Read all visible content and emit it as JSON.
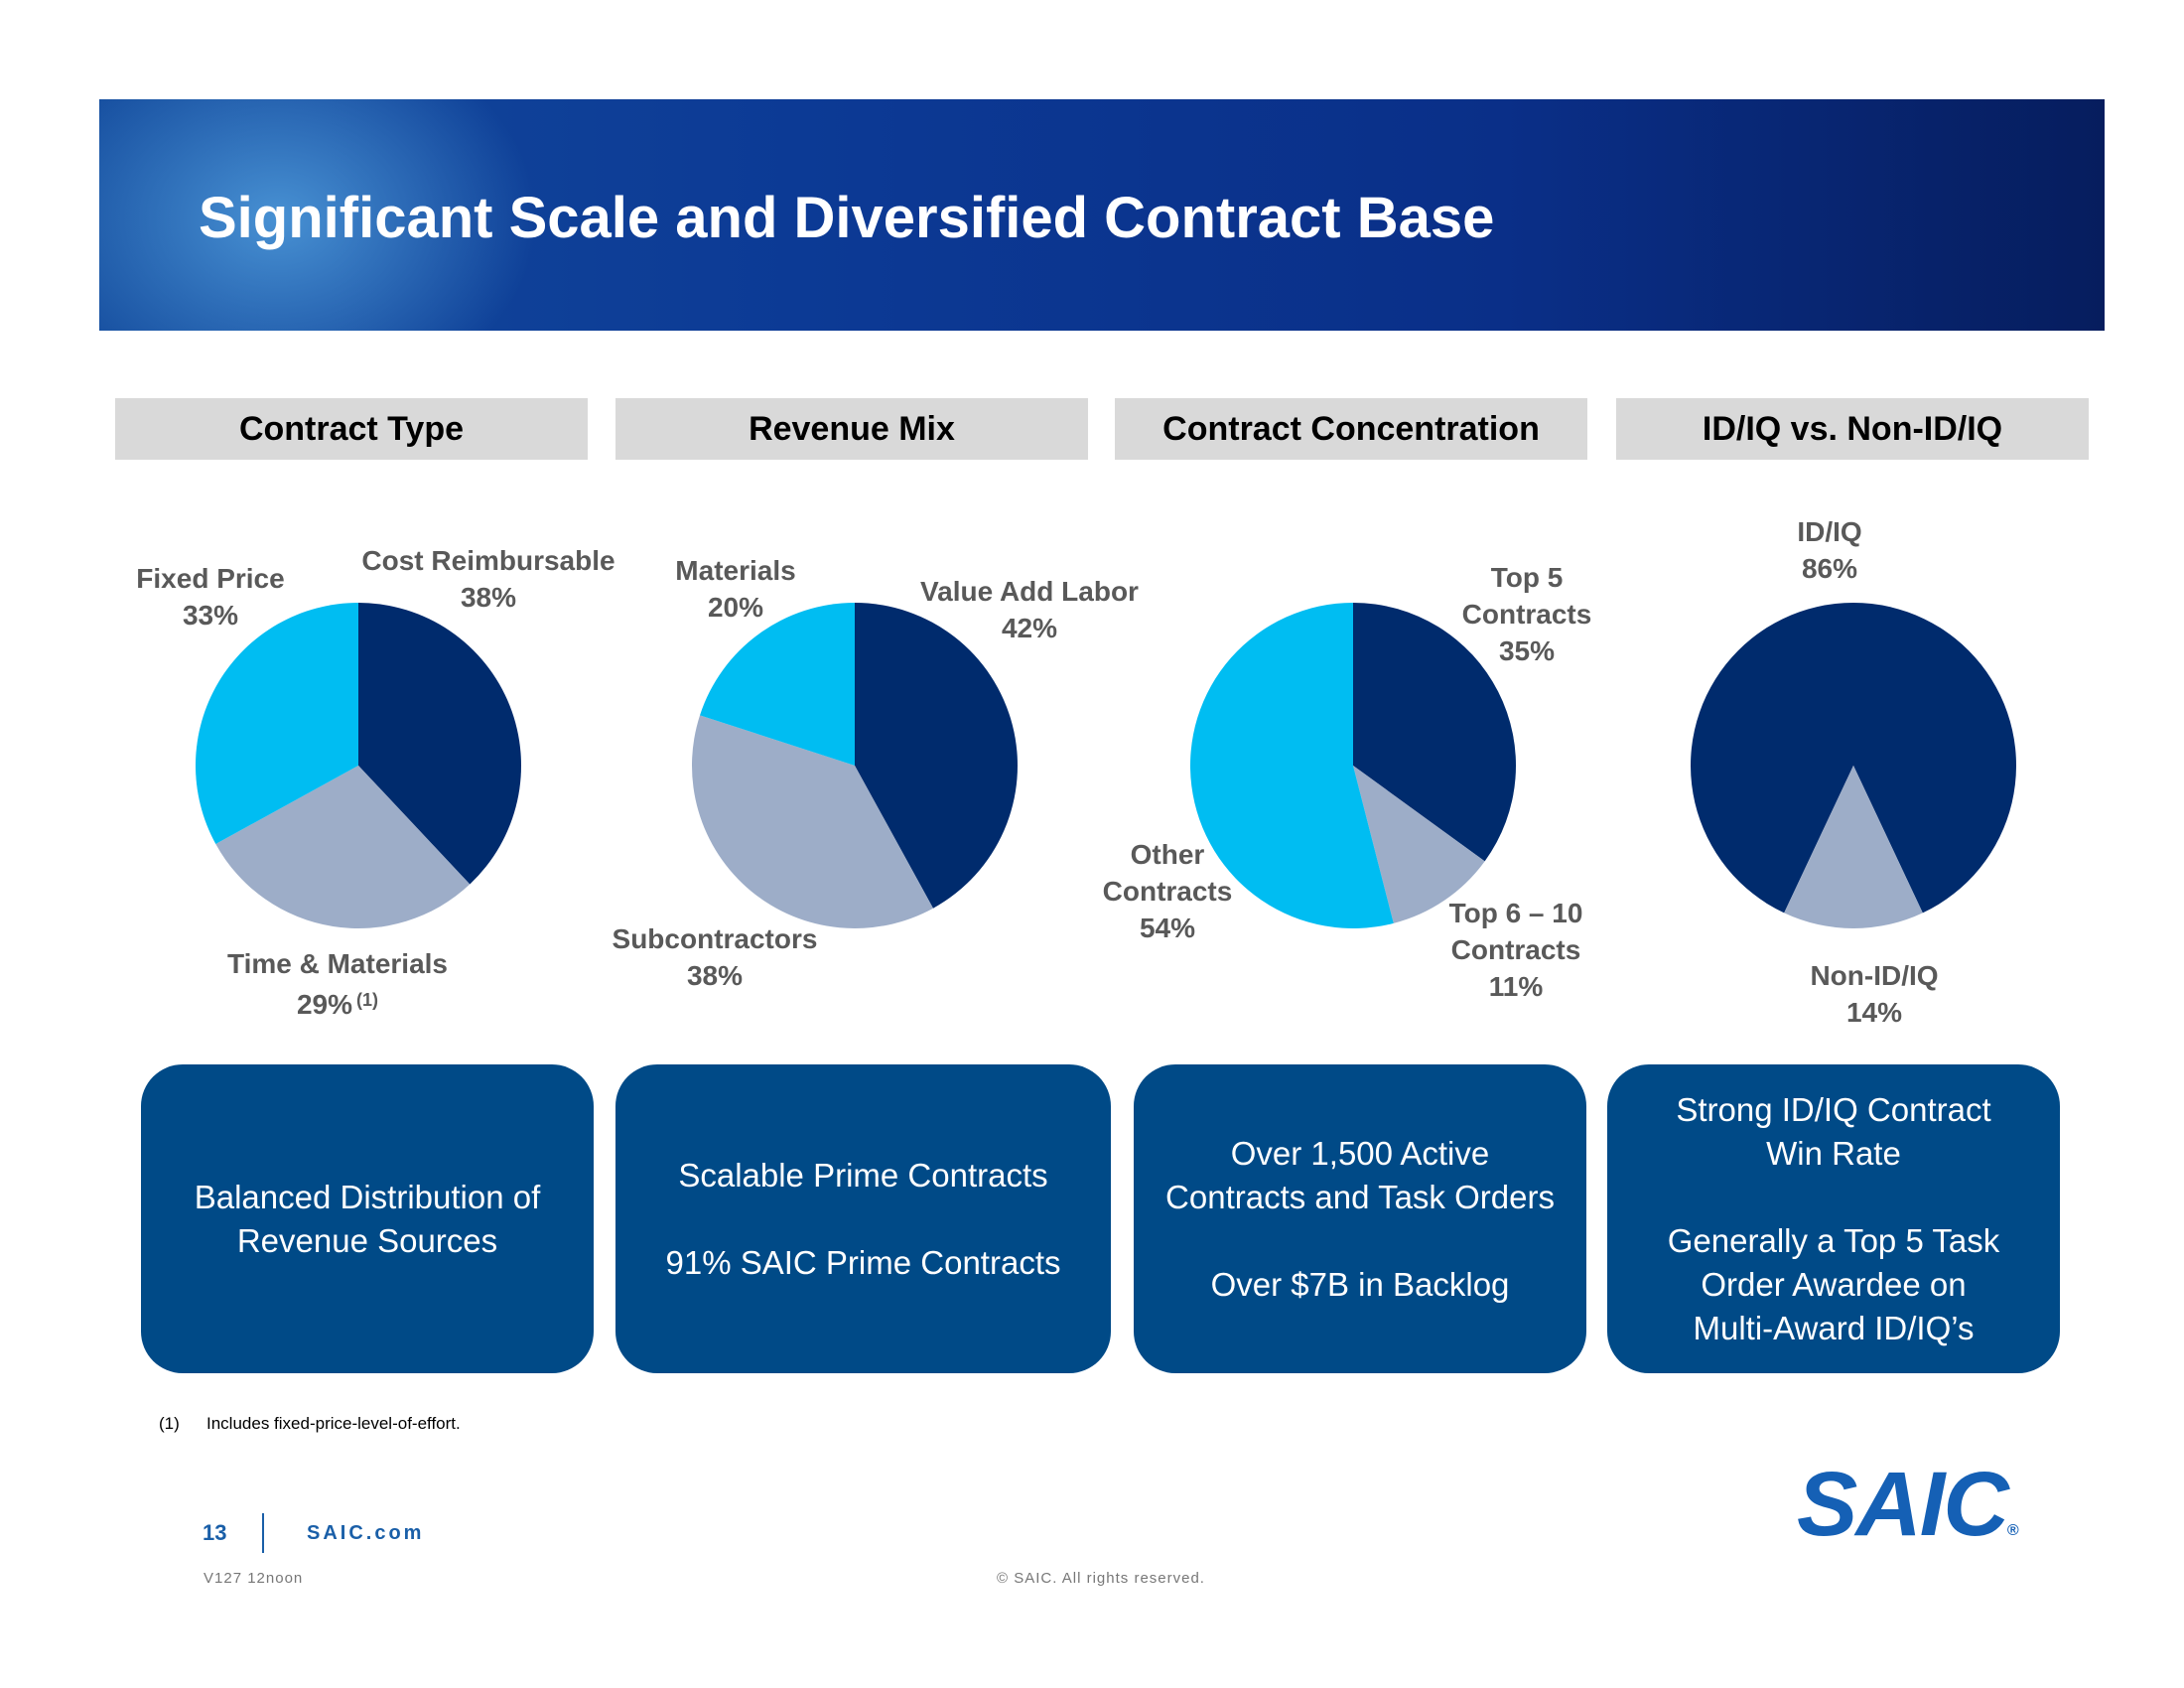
{
  "header": {
    "title": "Significant Scale and Diversified Contract Base"
  },
  "chart_data": [
    {
      "type": "pie",
      "title": "Contract Type",
      "categories": [
        "Cost Reimbursable",
        "Time & Materials",
        "Fixed Price"
      ],
      "values": [
        38,
        29,
        33
      ],
      "value_labels": [
        "38%",
        "29%",
        "33%"
      ],
      "colors": [
        "#002b6d",
        "#9dadc8",
        "#00bdf2"
      ],
      "start_angle": 0,
      "annotation": "(1)"
    },
    {
      "type": "pie",
      "title": "Revenue Mix",
      "categories": [
        "Value Add Labor",
        "Subcontractors",
        "Materials"
      ],
      "values": [
        42,
        38,
        20
      ],
      "value_labels": [
        "42%",
        "38%",
        "20%"
      ],
      "colors": [
        "#002b6d",
        "#9dadc8",
        "#00bdf2"
      ],
      "start_angle": 0
    },
    {
      "type": "pie",
      "title": "Contract Concentration",
      "categories": [
        "Top 5 Contracts",
        "Top 6 – 10 Contracts",
        "Other Contracts"
      ],
      "values": [
        35,
        11,
        54
      ],
      "value_labels": [
        "35%",
        "11%",
        "54%"
      ],
      "colors": [
        "#002b6d",
        "#9dadc8",
        "#00bdf2"
      ],
      "start_angle": 0
    },
    {
      "type": "pie",
      "title": "ID/IQ vs. Non-ID/IQ",
      "categories": [
        "ID/IQ",
        "Non-ID/IQ"
      ],
      "values": [
        86,
        14
      ],
      "value_labels": [
        "86%",
        "14%"
      ],
      "colors": [
        "#002b6d",
        "#9dadc8"
      ],
      "start_angle": 205.2
    }
  ],
  "boxes": [
    [
      [
        "Balanced Distribution of",
        "Revenue Sources"
      ]
    ],
    [
      [
        "Scalable Prime Contracts"
      ],
      [
        "91% SAIC Prime Contracts"
      ]
    ],
    [
      [
        "Over 1,500 Active",
        "Contracts and Task Orders"
      ],
      [
        "Over $7B in Backlog"
      ]
    ],
    [
      [
        "Strong ID/IQ Contract",
        "Win Rate"
      ],
      [
        "Generally a Top 5 Task",
        "Order Awardee on",
        "Multi-Award ID/IQ’s"
      ]
    ]
  ],
  "footnote": {
    "marker": "(1)",
    "text": "Includes fixed-price-level-of-effort."
  },
  "footer": {
    "page": "13",
    "site": "SAIC.com",
    "version": "V127 12noon",
    "copyright": "© SAIC. All rights reserved.",
    "logo": "SAIC",
    "logo_mark": "®"
  }
}
